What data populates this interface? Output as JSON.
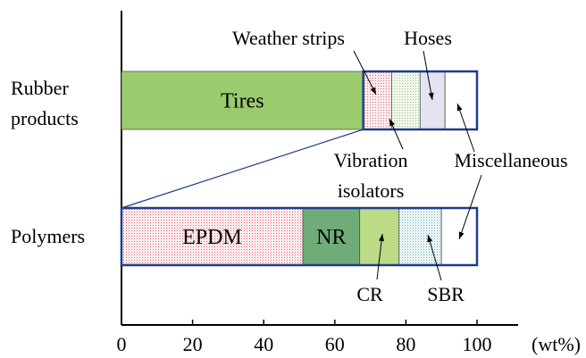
{
  "chart_data": {
    "type": "bar",
    "orientation": "horizontal",
    "stacked": true,
    "x_unit": "(wt%)",
    "xlim": [
      0,
      100
    ],
    "x_ticks": [
      "0",
      "20",
      "40",
      "60",
      "80",
      "100"
    ],
    "grid": false,
    "rows": [
      {
        "label_lines": [
          "Rubber",
          "products"
        ],
        "segments": [
          {
            "name": "Tires",
            "start": 0,
            "end": 68,
            "fill": "#9acc6e",
            "pattern": "none",
            "inside_label": "Tires"
          },
          {
            "name": "Weather strips",
            "start": 68,
            "end": 76,
            "fill": "#fbe3e5",
            "pattern": "dots-red",
            "inside_label": ""
          },
          {
            "name": "Vibration isolators",
            "start": 76,
            "end": 84,
            "fill": "#eef6e6",
            "pattern": "dots-green",
            "inside_label": ""
          },
          {
            "name": "Hoses",
            "start": 84,
            "end": 91,
            "fill": "#e3e3f2",
            "pattern": "none",
            "inside_label": ""
          },
          {
            "name": "Miscellaneous",
            "start": 91,
            "end": 100,
            "fill": "#ffffff",
            "pattern": "none",
            "inside_label": ""
          }
        ]
      },
      {
        "label_lines": [
          "Polymers"
        ],
        "segments": [
          {
            "name": "EPDM",
            "start": 0,
            "end": 51,
            "fill": "#fbe3e5",
            "pattern": "dots-red",
            "inside_label": "EPDM"
          },
          {
            "name": "NR",
            "start": 51,
            "end": 67,
            "fill": "#6fac78",
            "pattern": "none",
            "inside_label": "NR"
          },
          {
            "name": "CR",
            "start": 67,
            "end": 78,
            "fill": "#bcdb86",
            "pattern": "none",
            "inside_label": ""
          },
          {
            "name": "SBR",
            "start": 78,
            "end": 90,
            "fill": "#e4f2f2",
            "pattern": "dots-blue",
            "inside_label": ""
          },
          {
            "name": "Miscellaneous",
            "start": 90,
            "end": 100,
            "fill": "#ffffff",
            "pattern": "none",
            "inside_label": ""
          }
        ]
      }
    ],
    "callouts": [
      {
        "text_lines": [
          "Weather strips"
        ],
        "row": 0,
        "target": 72
      },
      {
        "text_lines": [
          "Hoses"
        ],
        "row": 0,
        "target": 87.5
      },
      {
        "text_lines": [
          "Vibration",
          "isolators"
        ],
        "row": 0,
        "target": 80
      },
      {
        "text_lines": [
          "Miscellaneous"
        ],
        "row": 0,
        "target": 95.5
      },
      {
        "text_lines": [
          "Miscellaneous"
        ],
        "row": 1,
        "target": 95
      },
      {
        "text_lines": [
          "CR"
        ],
        "row": 1,
        "target": 72.5
      },
      {
        "text_lines": [
          "SBR"
        ],
        "row": 1,
        "target": 84
      }
    ],
    "colors": {
      "outline": "#1f3c8c",
      "axis": "#000000",
      "connector": "#1f3c8c"
    }
  }
}
